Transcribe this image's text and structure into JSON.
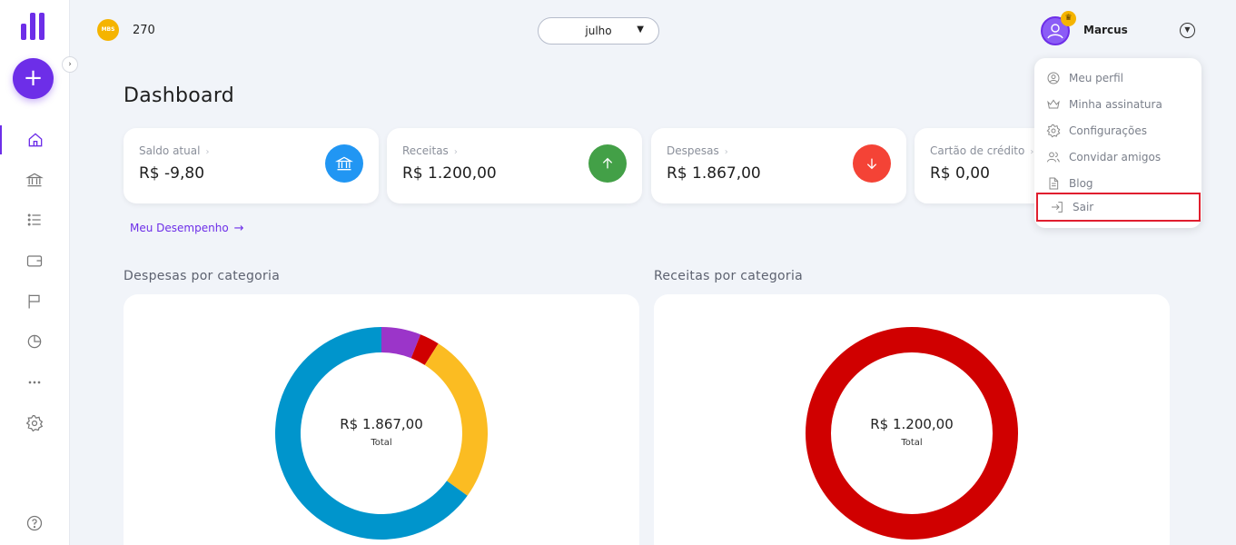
{
  "header": {
    "coin_label": "MBS",
    "coin_count": "270",
    "month": "julho",
    "username": "Marcus"
  },
  "sidebar": {
    "add_label": "+",
    "items": [
      {
        "name": "home-icon"
      },
      {
        "name": "bank-icon"
      },
      {
        "name": "list-icon"
      },
      {
        "name": "wallet-icon"
      },
      {
        "name": "flag-icon"
      },
      {
        "name": "pie-chart-icon"
      },
      {
        "name": "more-icon"
      },
      {
        "name": "gear-icon"
      },
      {
        "name": "help-icon"
      }
    ]
  },
  "page": {
    "title": "Dashboard",
    "performance_link": "Meu Desempenho"
  },
  "cards": [
    {
      "label": "Saldo atual",
      "value": "R$ -9,80",
      "icon": "bank-icon",
      "color": "#2196f3"
    },
    {
      "label": "Receitas",
      "value": "R$ 1.200,00",
      "icon": "arrow-up-icon",
      "color": "#43a047"
    },
    {
      "label": "Despesas",
      "value": "R$ 1.867,00",
      "icon": "arrow-down-icon",
      "color": "#f44336"
    },
    {
      "label": "Cartão de crédito",
      "value": "R$ 0,00",
      "icon": "credit-card-icon",
      "color": "#6d2ee8"
    }
  ],
  "sections": {
    "expenses_title": "Despesas por categoria",
    "income_title": "Receitas por categoria"
  },
  "chart_data": [
    {
      "type": "pie",
      "title": "Despesas por categoria",
      "center_value": "R$ 1.867,00",
      "center_label": "Total",
      "slices": [
        {
          "value": 6,
          "color": "#9b35c9"
        },
        {
          "value": 3,
          "color": "#d00000"
        },
        {
          "value": 26,
          "color": "#fbbc22"
        },
        {
          "value": 65,
          "color": "#0095cc"
        }
      ]
    },
    {
      "type": "pie",
      "title": "Receitas por categoria",
      "center_value": "R$ 1.200,00",
      "center_label": "Total",
      "slices": [
        {
          "value": 100,
          "color": "#d00000"
        }
      ]
    }
  ],
  "user_menu": {
    "items": [
      {
        "label": "Meu perfil",
        "icon": "user-icon"
      },
      {
        "label": "Minha assinatura",
        "icon": "crown-icon"
      },
      {
        "label": "Configurações",
        "icon": "gear-icon"
      },
      {
        "label": "Convidar amigos",
        "icon": "users-icon"
      },
      {
        "label": "Blog",
        "icon": "document-icon"
      },
      {
        "label": "Sair",
        "icon": "logout-icon"
      }
    ]
  },
  "colors": {
    "accent": "#6d2ee8",
    "highlight_border": "#e01e2e"
  }
}
